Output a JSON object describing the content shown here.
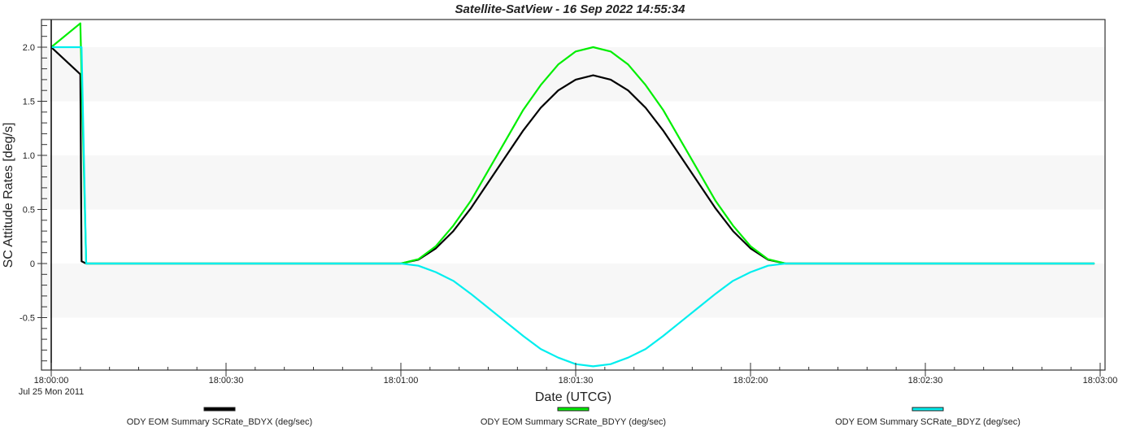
{
  "chart_data": {
    "type": "line",
    "title": "Satellite-SatView - 16 Sep 2022 14:55:34",
    "xlabel": "Date (UTCG)",
    "ylabel": "SC Attitude Rates [deg/s]",
    "x_date_label": "Jul 25 Mon 2011",
    "xlim": [
      "18:00:00",
      "18:03:00"
    ],
    "ylim": [
      -1.0,
      2.27
    ],
    "x_ticks": [
      "18:00:00",
      "18:00:30",
      "18:01:00",
      "18:01:30",
      "18:02:00",
      "18:02:30",
      "18:03:00"
    ],
    "y_ticks": [
      {
        "value": 2.0,
        "label": "2.0"
      },
      {
        "value": 1.5,
        "label": "1.5"
      },
      {
        "value": 1.0,
        "label": "1.0"
      },
      {
        "value": 0.5,
        "label": "0.5"
      },
      {
        "value": 0,
        "label": "0"
      },
      {
        "value": -0.5,
        "label": "-0.5"
      }
    ],
    "grid": "alternating horizontal bands",
    "legend_placement": "bottom",
    "series": [
      {
        "name": "ODY EOM Summary SCRate_BDYX (deg/sec)",
        "color": "#000000",
        "x": [
          "18:00:00",
          "18:00:02",
          "18:00:05",
          "18:00:05.2",
          "18:00:06",
          "18:01:00",
          "18:01:03",
          "18:01:06",
          "18:01:09",
          "18:01:12",
          "18:01:15",
          "18:01:18",
          "18:01:21",
          "18:01:24",
          "18:01:27",
          "18:01:30",
          "18:01:33",
          "18:01:36",
          "18:01:39",
          "18:01:42",
          "18:01:45",
          "18:01:48",
          "18:01:51",
          "18:01:54",
          "18:01:57",
          "18:02:00",
          "18:02:03",
          "18:02:06",
          "18:02:59"
        ],
        "y": [
          2.0,
          1.9,
          1.75,
          0.02,
          0,
          0,
          0.035,
          0.14,
          0.3,
          0.51,
          0.75,
          0.99,
          1.23,
          1.44,
          1.6,
          1.7,
          1.74,
          1.7,
          1.6,
          1.44,
          1.23,
          0.99,
          0.75,
          0.51,
          0.3,
          0.14,
          0.035,
          0,
          0
        ]
      },
      {
        "name": "ODY EOM Summary SCRate_BDYY (deg/sec)",
        "color": "#00ee00",
        "x": [
          "18:00:00",
          "18:00:05",
          "18:00:06",
          "18:01:00",
          "18:01:03",
          "18:01:06",
          "18:01:09",
          "18:01:12",
          "18:01:15",
          "18:01:18",
          "18:01:21",
          "18:01:24",
          "18:01:27",
          "18:01:30",
          "18:01:33",
          "18:01:36",
          "18:01:39",
          "18:01:42",
          "18:01:45",
          "18:01:48",
          "18:01:51",
          "18:01:54",
          "18:01:57",
          "18:02:00",
          "18:02:03",
          "18:02:06",
          "18:02:59"
        ],
        "y": [
          2.0,
          2.22,
          0,
          0,
          0.04,
          0.16,
          0.35,
          0.58,
          0.86,
          1.14,
          1.42,
          1.65,
          1.84,
          1.96,
          2.0,
          1.96,
          1.84,
          1.65,
          1.42,
          1.14,
          0.86,
          0.58,
          0.35,
          0.16,
          0.04,
          0,
          0
        ]
      },
      {
        "name": "ODY EOM Summary SCRate_BDYZ (deg/sec)",
        "color": "#00eeee",
        "x": [
          "18:00:00",
          "18:00:05.2",
          "18:00:06",
          "18:01:00",
          "18:01:03",
          "18:01:06",
          "18:01:09",
          "18:01:12",
          "18:01:15",
          "18:01:18",
          "18:01:21",
          "18:01:24",
          "18:01:27",
          "18:01:30",
          "18:01:33",
          "18:01:36",
          "18:01:39",
          "18:01:42",
          "18:01:45",
          "18:01:48",
          "18:01:51",
          "18:01:54",
          "18:01:57",
          "18:02:00",
          "18:02:03",
          "18:02:06",
          "18:02:59"
        ],
        "y": [
          2.0,
          2.0,
          0,
          0,
          -0.02,
          -0.08,
          -0.16,
          -0.28,
          -0.41,
          -0.54,
          -0.67,
          -0.79,
          -0.87,
          -0.93,
          -0.95,
          -0.93,
          -0.87,
          -0.79,
          -0.67,
          -0.54,
          -0.41,
          -0.28,
          -0.16,
          -0.08,
          -0.02,
          0,
          0
        ]
      }
    ]
  }
}
